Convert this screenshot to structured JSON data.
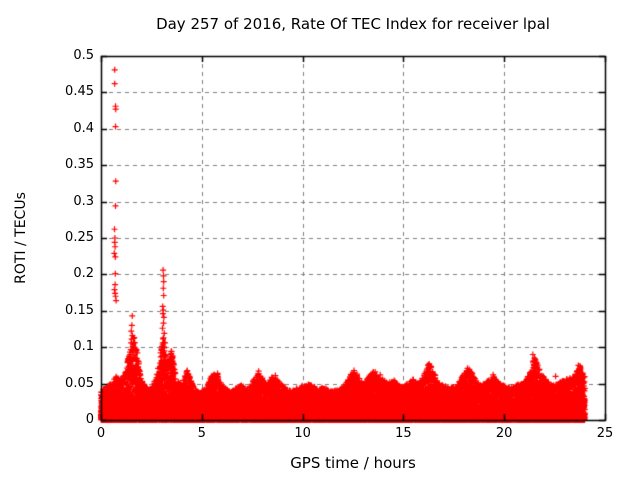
{
  "chart_data": {
    "type": "scatter",
    "title": "Day 257 of 2016, Rate Of TEC Index for receiver lpal",
    "xlabel": "GPS time / hours",
    "ylabel": "ROTI / TECUs",
    "xlim": [
      0,
      25
    ],
    "ylim": [
      0,
      0.5
    ],
    "xticks": [
      "0",
      "5",
      "10",
      "15",
      "20",
      "25"
    ],
    "yticks": [
      "0",
      "0.05",
      "0.1",
      "0.15",
      "0.2",
      "0.25",
      "0.3",
      "0.35",
      "0.4",
      "0.45",
      "0.5"
    ],
    "grid": true,
    "legend": "none",
    "marker": "plus",
    "marker_color": "#ff0000",
    "grid_color": "#808080",
    "axis_color": "#000000",
    "background": "#ffffff",
    "data_span_hours": [
      0,
      24
    ],
    "band_envelope": [
      [
        0.0,
        0.04
      ],
      [
        0.25,
        0.045
      ],
      [
        0.5,
        0.05
      ],
      [
        0.75,
        0.06
      ],
      [
        1.0,
        0.055
      ],
      [
        1.25,
        0.07
      ],
      [
        1.5,
        0.105
      ],
      [
        1.65,
        0.12
      ],
      [
        1.8,
        0.095
      ],
      [
        2.0,
        0.055
      ],
      [
        2.25,
        0.045
      ],
      [
        2.5,
        0.042
      ],
      [
        2.75,
        0.06
      ],
      [
        3.0,
        0.1
      ],
      [
        3.1,
        0.115
      ],
      [
        3.25,
        0.08
      ],
      [
        3.5,
        0.095
      ],
      [
        3.75,
        0.055
      ],
      [
        4.0,
        0.048
      ],
      [
        4.25,
        0.07
      ],
      [
        4.5,
        0.052
      ],
      [
        4.75,
        0.042
      ],
      [
        5.0,
        0.04
      ],
      [
        5.25,
        0.045
      ],
      [
        5.5,
        0.062
      ],
      [
        5.75,
        0.065
      ],
      [
        6.0,
        0.048
      ],
      [
        6.25,
        0.042
      ],
      [
        6.5,
        0.04
      ],
      [
        6.75,
        0.045
      ],
      [
        7.0,
        0.048
      ],
      [
        7.25,
        0.042
      ],
      [
        7.5,
        0.052
      ],
      [
        7.75,
        0.067
      ],
      [
        8.0,
        0.058
      ],
      [
        8.25,
        0.048
      ],
      [
        8.5,
        0.06
      ],
      [
        8.75,
        0.055
      ],
      [
        9.0,
        0.048
      ],
      [
        9.25,
        0.042
      ],
      [
        9.5,
        0.04
      ],
      [
        9.75,
        0.045
      ],
      [
        10.0,
        0.048
      ],
      [
        10.25,
        0.05
      ],
      [
        10.5,
        0.048
      ],
      [
        10.75,
        0.042
      ],
      [
        11.0,
        0.046
      ],
      [
        11.25,
        0.042
      ],
      [
        11.5,
        0.04
      ],
      [
        11.75,
        0.042
      ],
      [
        12.0,
        0.045
      ],
      [
        12.25,
        0.055
      ],
      [
        12.5,
        0.068
      ],
      [
        12.75,
        0.06
      ],
      [
        13.0,
        0.05
      ],
      [
        13.25,
        0.058
      ],
      [
        13.5,
        0.068
      ],
      [
        13.75,
        0.06
      ],
      [
        14.0,
        0.055
      ],
      [
        14.25,
        0.05
      ],
      [
        14.5,
        0.056
      ],
      [
        14.75,
        0.048
      ],
      [
        15.0,
        0.045
      ],
      [
        15.25,
        0.052
      ],
      [
        15.5,
        0.056
      ],
      [
        15.75,
        0.05
      ],
      [
        16.0,
        0.06
      ],
      [
        16.25,
        0.078
      ],
      [
        16.5,
        0.068
      ],
      [
        16.75,
        0.05
      ],
      [
        17.0,
        0.048
      ],
      [
        17.25,
        0.044
      ],
      [
        17.5,
        0.046
      ],
      [
        17.75,
        0.052
      ],
      [
        18.0,
        0.065
      ],
      [
        18.25,
        0.072
      ],
      [
        18.5,
        0.06
      ],
      [
        18.75,
        0.048
      ],
      [
        19.0,
        0.05
      ],
      [
        19.25,
        0.055
      ],
      [
        19.5,
        0.06
      ],
      [
        19.75,
        0.05
      ],
      [
        20.0,
        0.048
      ],
      [
        20.25,
        0.044
      ],
      [
        20.5,
        0.046
      ],
      [
        20.75,
        0.05
      ],
      [
        21.0,
        0.052
      ],
      [
        21.25,
        0.065
      ],
      [
        21.5,
        0.088
      ],
      [
        21.75,
        0.07
      ],
      [
        22.0,
        0.058
      ],
      [
        22.25,
        0.05
      ],
      [
        22.5,
        0.048
      ],
      [
        22.75,
        0.052
      ],
      [
        23.0,
        0.055
      ],
      [
        23.25,
        0.058
      ],
      [
        23.5,
        0.062
      ],
      [
        23.75,
        0.075
      ],
      [
        24.0,
        0.06
      ]
    ],
    "outliers": [
      [
        0.68,
        0.481
      ],
      [
        0.68,
        0.462
      ],
      [
        0.72,
        0.431
      ],
      [
        0.73,
        0.427
      ],
      [
        0.72,
        0.403
      ],
      [
        0.73,
        0.328
      ],
      [
        0.72,
        0.294
      ],
      [
        0.67,
        0.262
      ],
      [
        0.69,
        0.25
      ],
      [
        0.68,
        0.244
      ],
      [
        0.7,
        0.238
      ],
      [
        0.66,
        0.229
      ],
      [
        0.71,
        0.224
      ],
      [
        0.71,
        0.201
      ],
      [
        0.7,
        0.186
      ],
      [
        0.67,
        0.179
      ],
      [
        0.7,
        0.174
      ],
      [
        0.72,
        0.17
      ],
      [
        0.75,
        0.164
      ],
      [
        1.55,
        0.143
      ],
      [
        1.53,
        0.13
      ],
      [
        1.5,
        0.122
      ],
      [
        1.56,
        0.116
      ],
      [
        1.52,
        0.111
      ],
      [
        1.49,
        0.106
      ],
      [
        1.58,
        0.101
      ],
      [
        1.62,
        0.096
      ],
      [
        1.55,
        0.092
      ],
      [
        3.08,
        0.206
      ],
      [
        3.1,
        0.198
      ],
      [
        3.11,
        0.19
      ],
      [
        3.09,
        0.181
      ],
      [
        3.11,
        0.171
      ],
      [
        3.06,
        0.156
      ],
      [
        3.09,
        0.151
      ],
      [
        3.07,
        0.146
      ],
      [
        3.12,
        0.141
      ],
      [
        3.1,
        0.133
      ],
      [
        3.05,
        0.126
      ],
      [
        3.14,
        0.119
      ],
      [
        3.1,
        0.113
      ],
      [
        3.18,
        0.106
      ],
      [
        3.13,
        0.099
      ],
      [
        3.09,
        0.093
      ],
      [
        3.22,
        0.088
      ],
      [
        3.48,
        0.094
      ],
      [
        3.54,
        0.088
      ],
      [
        3.5,
        0.083
      ],
      [
        3.58,
        0.078
      ],
      [
        3.45,
        0.073
      ],
      [
        3.61,
        0.07
      ],
      [
        4.28,
        0.068
      ],
      [
        4.33,
        0.063
      ],
      [
        4.24,
        0.059
      ],
      [
        5.78,
        0.064
      ],
      [
        7.82,
        0.067
      ],
      [
        8.65,
        0.061
      ],
      [
        12.55,
        0.068
      ],
      [
        12.7,
        0.063
      ],
      [
        13.6,
        0.066
      ],
      [
        13.85,
        0.062
      ],
      [
        16.28,
        0.077
      ],
      [
        16.35,
        0.072
      ],
      [
        16.45,
        0.066
      ],
      [
        18.18,
        0.071
      ],
      [
        18.3,
        0.066
      ],
      [
        19.45,
        0.062
      ],
      [
        21.42,
        0.09
      ],
      [
        21.5,
        0.085
      ],
      [
        21.56,
        0.08
      ],
      [
        21.62,
        0.073
      ],
      [
        22.55,
        0.06
      ],
      [
        23.68,
        0.075
      ],
      [
        23.74,
        0.07
      ],
      [
        23.8,
        0.065
      ]
    ]
  }
}
